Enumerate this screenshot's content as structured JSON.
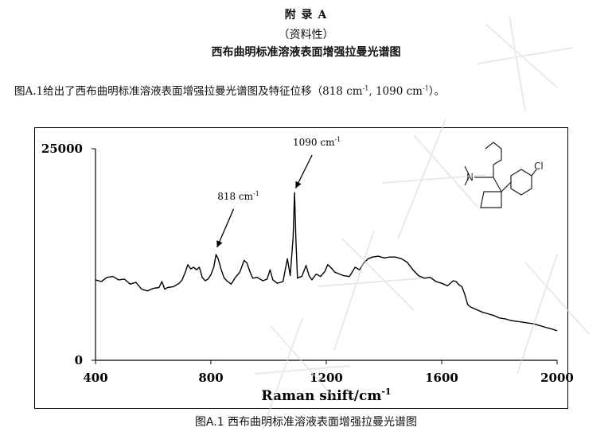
{
  "header": {
    "appendix_title": "附 录 A",
    "appendix_note": "（资料性）",
    "section_title": "西布曲明标准溶液表面增强拉曼光谱图"
  },
  "paragraph": {
    "text_before": "图A.1给出了西布曲明标准溶液表面增强拉曼光谱图及特征位移（818 cm",
    "sup1": "-1",
    "text_middle": ", 1090 cm",
    "sup2": "-1",
    "text_after": "）。"
  },
  "figure": {
    "caption": "图A.1  西布曲明标准溶液表面增强拉曼光谱图",
    "structure_label": "Cl"
  },
  "chart_data": {
    "type": "line",
    "xlabel": "Raman shift/cm",
    "xlabel_sup": "-1",
    "xlim": [
      400,
      2000
    ],
    "ylim": [
      0,
      25000
    ],
    "x_ticks": [
      400,
      800,
      1200,
      1600,
      2000
    ],
    "y_ticks": [
      0,
      25000
    ],
    "y_tick_labels": [
      "0",
      "25000"
    ],
    "grid": false,
    "annotations": [
      {
        "label": "818 cm",
        "sup": "-1",
        "x": 818,
        "y": 12800
      },
      {
        "label": "1090 cm",
        "sup": "-1",
        "x": 1090,
        "y": 19800
      }
    ],
    "series": [
      {
        "x": [
          400,
          420,
          440,
          460,
          480,
          500,
          520,
          540,
          560,
          580,
          600,
          620,
          630,
          640,
          650,
          670,
          690,
          700,
          710,
          720,
          730,
          740,
          750,
          760,
          770,
          780,
          790,
          800,
          810,
          818,
          825,
          835,
          845,
          855,
          870,
          885,
          900,
          915,
          925,
          935,
          945,
          960,
          980,
          995,
          1005,
          1015,
          1030,
          1050,
          1065,
          1075,
          1085,
          1090,
          1095,
          1100,
          1105,
          1115,
          1130,
          1140,
          1150,
          1165,
          1180,
          1195,
          1205,
          1215,
          1230,
          1245,
          1260,
          1280,
          1300,
          1315,
          1330,
          1345,
          1360,
          1380,
          1400,
          1420,
          1440,
          1460,
          1480,
          1500,
          1520,
          1540,
          1560,
          1580,
          1600,
          1620,
          1640,
          1650,
          1660,
          1670,
          1680,
          1690,
          1700,
          1720,
          1740,
          1760,
          1780,
          1800,
          1820,
          1840,
          1860,
          1880,
          1900,
          1920,
          1940,
          1960,
          1980,
          2000
        ],
        "y": [
          9500,
          9300,
          9800,
          9900,
          9500,
          9600,
          9000,
          9200,
          8400,
          8200,
          8500,
          8600,
          9300,
          8400,
          8600,
          8700,
          9100,
          9500,
          10300,
          11300,
          10800,
          11000,
          10700,
          11000,
          9800,
          9400,
          9600,
          10100,
          11000,
          12500,
          12000,
          10800,
          9800,
          9400,
          9000,
          9800,
          10400,
          11800,
          11500,
          10500,
          9700,
          9800,
          9400,
          9600,
          10700,
          9500,
          9100,
          9300,
          12000,
          10000,
          14500,
          19800,
          14000,
          9700,
          9800,
          9900,
          11200,
          10000,
          9500,
          10200,
          9900,
          10500,
          11300,
          11000,
          10400,
          10200,
          10000,
          9900,
          11000,
          10700,
          11500,
          12000,
          12200,
          12300,
          12100,
          12200,
          12200,
          12000,
          11600,
          10700,
          10000,
          9700,
          9800,
          9300,
          9100,
          8800,
          9400,
          9300,
          8900,
          8700,
          7800,
          6600,
          6300,
          6000,
          5700,
          5500,
          5300,
          5000,
          4900,
          4700,
          4600,
          4500,
          4400,
          4300,
          4100,
          3900,
          3700,
          3500
        ]
      }
    ]
  }
}
